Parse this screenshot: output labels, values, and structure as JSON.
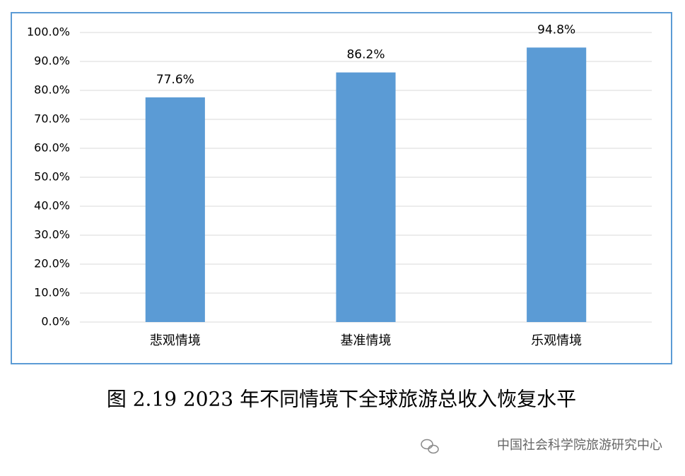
{
  "chart_data": {
    "type": "bar",
    "title": "图 2.19 2023 年不同情境下全球旅游总收入恢复水平",
    "source": "中国社会科学院旅游研究中心",
    "categories": [
      "悲观情境",
      "基准情境",
      "乐观情境"
    ],
    "values": [
      77.6,
      86.2,
      94.8
    ],
    "value_labels": [
      "77.6%",
      "86.2%",
      "94.8%"
    ],
    "color": "#5b9bd5",
    "ylim": [
      0,
      100
    ],
    "yticks": [
      {
        "value": 0,
        "label": "0.0%"
      },
      {
        "value": 10,
        "label": "10.0%"
      },
      {
        "value": 20,
        "label": "20.0%"
      },
      {
        "value": 30,
        "label": "30.0%"
      },
      {
        "value": 40,
        "label": "40.0%"
      },
      {
        "value": 50,
        "label": "50.0%"
      },
      {
        "value": 60,
        "label": "60.0%"
      },
      {
        "value": 70,
        "label": "70.0%"
      },
      {
        "value": 80,
        "label": "80.0%"
      },
      {
        "value": 90,
        "label": "90.0%"
      },
      {
        "value": 100,
        "label": "100.0%"
      }
    ],
    "grid": true
  }
}
